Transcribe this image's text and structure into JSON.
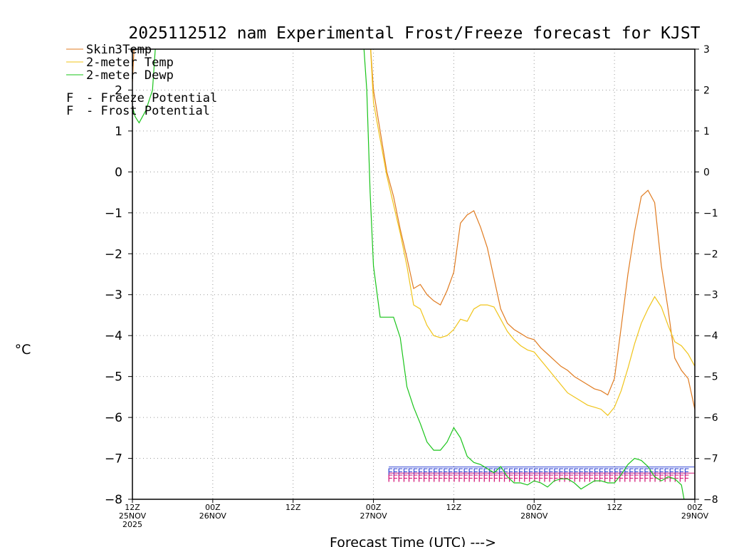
{
  "chart_data": {
    "type": "line",
    "title": "2025112512 nam Experimental Frost/Freeze forecast for KJST",
    "ylabel": "°C",
    "xlabel": "Forecast Time (UTC) --->",
    "ylim": [
      -8,
      3
    ],
    "yticks": [
      3,
      2,
      1,
      0,
      -1,
      -2,
      -3,
      -4,
      -5,
      -6,
      -7,
      -8
    ],
    "xlim": [
      0,
      84
    ],
    "xticks": [
      {
        "x": 0,
        "lines": [
          "12Z",
          "25NOV",
          "2025"
        ]
      },
      {
        "x": 12,
        "lines": [
          "00Z",
          "26NOV"
        ]
      },
      {
        "x": 24,
        "lines": [
          "12Z"
        ]
      },
      {
        "x": 36,
        "lines": [
          "00Z",
          "27NOV"
        ]
      },
      {
        "x": 48,
        "lines": [
          "12Z"
        ]
      },
      {
        "x": 60,
        "lines": [
          "00Z",
          "28NOV"
        ]
      },
      {
        "x": 72,
        "lines": [
          "12Z"
        ]
      },
      {
        "x": 84,
        "lines": [
          "00Z",
          "29NOV"
        ]
      }
    ],
    "grid": true,
    "series": [
      {
        "name": "Skin Temp",
        "label": "Skin Temp",
        "color": "#e07b20",
        "x": [
          0,
          0.3,
          35.5,
          36,
          37,
          38,
          39,
          40,
          41,
          42,
          43,
          44,
          45,
          46,
          47,
          48,
          49,
          50,
          51,
          52,
          53,
          54,
          55,
          56,
          57,
          58,
          59,
          60,
          61,
          62,
          63,
          64,
          65,
          66,
          67,
          68,
          69,
          70,
          71,
          72,
          73,
          74,
          75,
          76,
          77,
          78,
          79,
          80,
          81,
          82,
          83,
          84
        ],
        "values": [
          2.2,
          3.2,
          3.2,
          2.0,
          1.0,
          0.0,
          -0.6,
          -1.4,
          -2.1,
          -2.85,
          -2.75,
          -3.0,
          -3.15,
          -3.25,
          -2.9,
          -2.45,
          -1.25,
          -1.05,
          -0.95,
          -1.35,
          -1.85,
          -2.6,
          -3.35,
          -3.7,
          -3.85,
          -3.95,
          -4.05,
          -4.1,
          -4.3,
          -4.45,
          -4.6,
          -4.75,
          -4.85,
          -5.0,
          -5.1,
          -5.2,
          -5.3,
          -5.35,
          -5.45,
          -5.05,
          -3.8,
          -2.5,
          -1.45,
          -0.6,
          -0.45,
          -0.75,
          -2.3,
          -3.35,
          -4.55,
          -4.85,
          -5.05,
          -5.8
        ]
      },
      {
        "name": "2-meter Temp",
        "label": "2-meter Temp",
        "color": "#f0c419",
        "x": [
          35.5,
          36,
          37,
          38,
          39,
          40,
          41,
          42,
          43,
          44,
          45,
          46,
          47,
          48,
          49,
          50,
          51,
          52,
          53,
          54,
          55,
          56,
          57,
          58,
          59,
          60,
          61,
          62,
          63,
          64,
          65,
          66,
          67,
          68,
          69,
          70,
          71,
          72,
          73,
          74,
          75,
          76,
          77,
          78,
          79,
          80,
          81,
          82,
          83,
          84
        ],
        "values": [
          3.2,
          1.7,
          0.8,
          -0.1,
          -0.8,
          -1.5,
          -2.3,
          -3.25,
          -3.35,
          -3.75,
          -4.0,
          -4.05,
          -4.0,
          -3.85,
          -3.6,
          -3.65,
          -3.35,
          -3.25,
          -3.25,
          -3.3,
          -3.6,
          -3.9,
          -4.1,
          -4.25,
          -4.35,
          -4.4,
          -4.6,
          -4.8,
          -5.0,
          -5.2,
          -5.4,
          -5.5,
          -5.6,
          -5.7,
          -5.75,
          -5.8,
          -5.95,
          -5.75,
          -5.35,
          -4.8,
          -4.2,
          -3.7,
          -3.35,
          -3.05,
          -3.3,
          -3.75,
          -4.15,
          -4.25,
          -4.45,
          -4.75
        ]
      },
      {
        "name": "2-meter Dewp",
        "label": "2-meter Dewp",
        "color": "#19c419",
        "x": [
          0,
          0.4,
          1,
          2,
          3,
          3.5,
          34.5,
          35,
          35.5,
          36,
          37,
          38,
          39,
          40,
          41,
          42,
          43,
          44,
          45,
          46,
          47,
          48,
          49,
          50,
          51,
          52,
          53,
          54,
          55,
          56,
          57,
          58,
          59,
          60,
          61,
          62,
          63,
          64,
          65,
          66,
          67,
          68,
          69,
          70,
          71,
          72,
          73,
          74,
          75,
          76,
          77,
          78,
          79,
          80,
          81,
          82,
          82.5
        ],
        "values": [
          1.6,
          1.35,
          1.2,
          1.5,
          2.0,
          3.2,
          3.2,
          2.0,
          -0.5,
          -2.3,
          -3.55,
          -3.55,
          -3.55,
          -4.05,
          -5.25,
          -5.75,
          -6.15,
          -6.6,
          -6.8,
          -6.8,
          -6.6,
          -6.25,
          -6.5,
          -6.95,
          -7.1,
          -7.15,
          -7.25,
          -7.35,
          -7.2,
          -7.45,
          -7.6,
          -7.6,
          -7.65,
          -7.55,
          -7.6,
          -7.7,
          -7.55,
          -7.5,
          -7.5,
          -7.6,
          -7.75,
          -7.65,
          -7.55,
          -7.55,
          -7.6,
          -7.6,
          -7.4,
          -7.15,
          -7.0,
          -7.05,
          -7.2,
          -7.45,
          -7.55,
          -7.45,
          -7.5,
          -7.65,
          -8.1
        ]
      }
    ],
    "potential_markers": {
      "glyph": "F",
      "start": 38.5,
      "step": 0.75,
      "count": 60,
      "freeze_level": -7.5,
      "frost_level": -7.35,
      "freeze_color": "#d6187a",
      "frost_color": "#3a4ed6"
    },
    "legend": {
      "position": "top-left",
      "freeze_item": {
        "glyph": "F",
        "text": "- Freeze Potential",
        "color": "#d6187a"
      },
      "frost_item": {
        "glyph": "F",
        "text": "- Frost Potential",
        "color": "#3a4ed6"
      }
    }
  }
}
